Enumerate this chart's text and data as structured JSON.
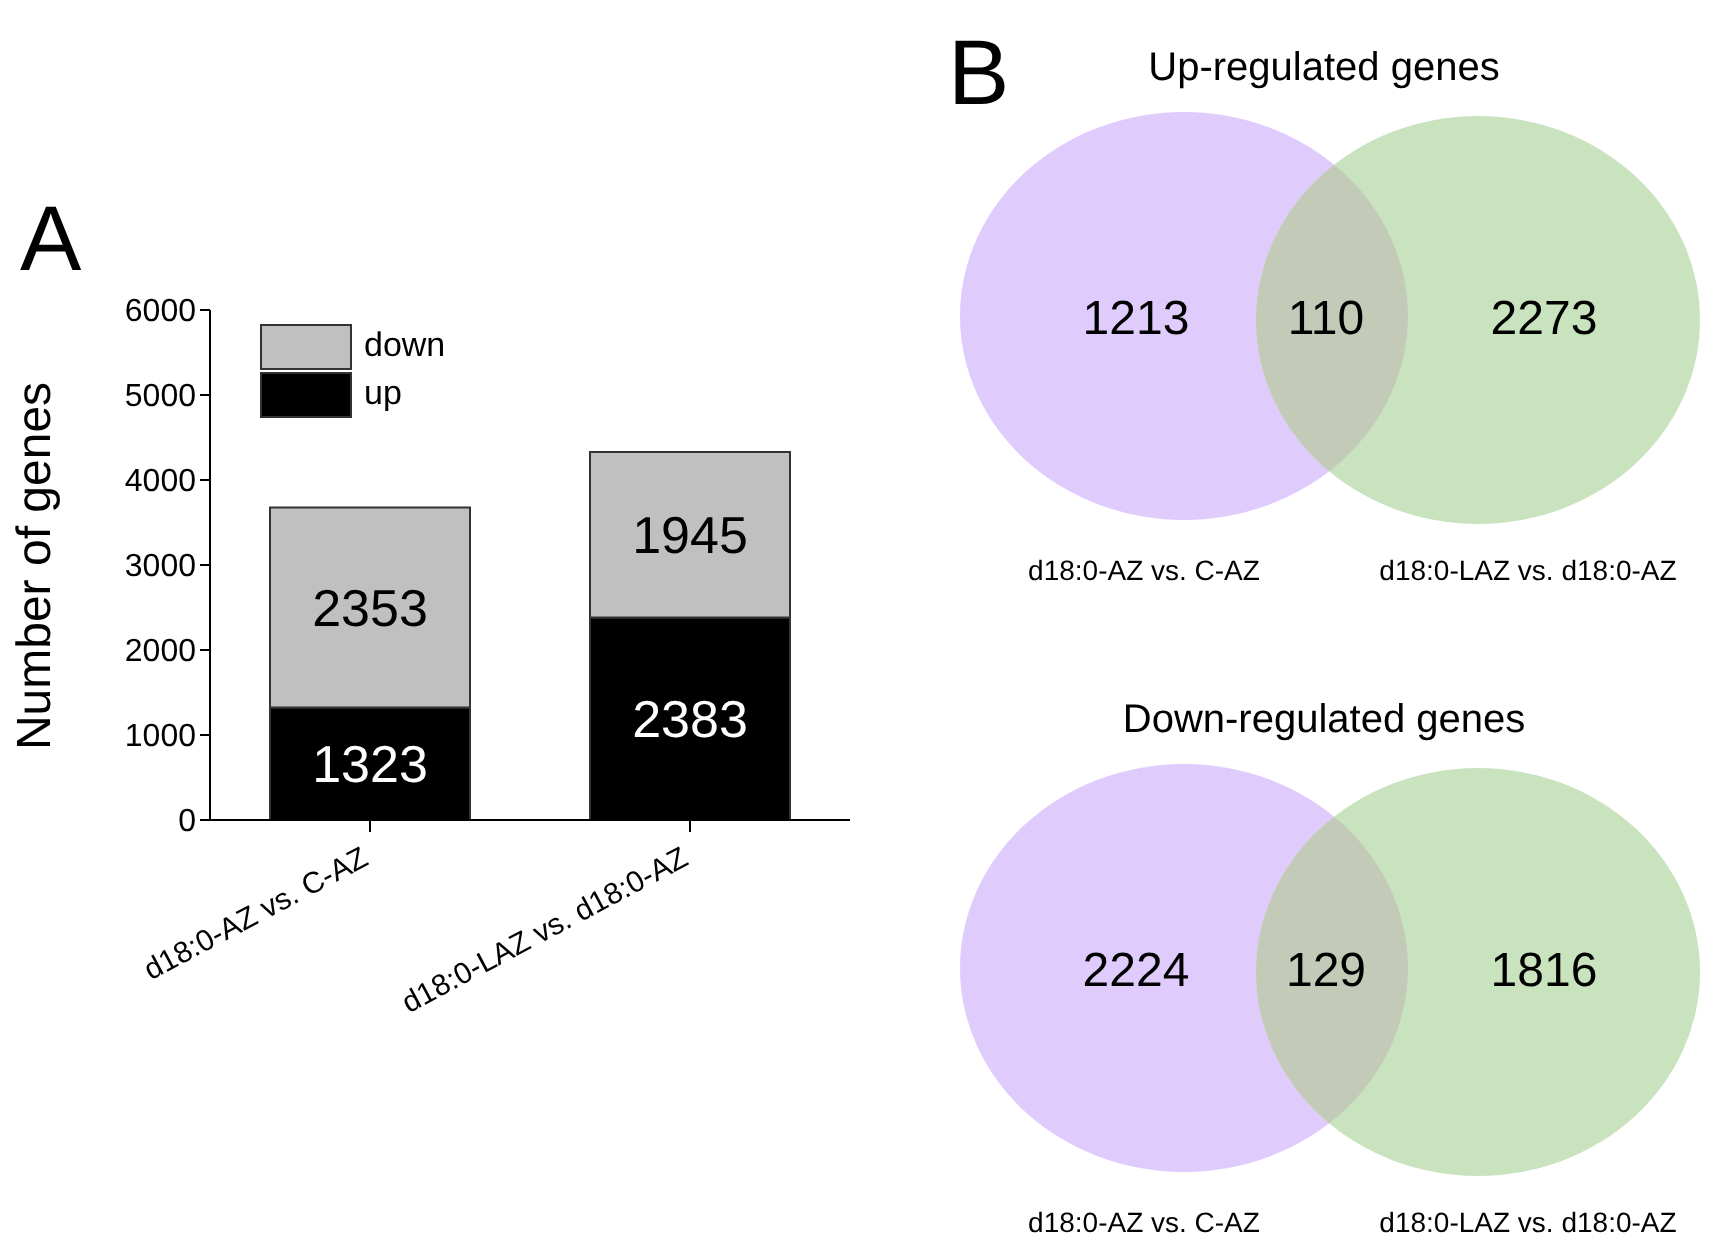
{
  "chart_data": [
    {
      "type": "bar",
      "title": "A",
      "ylabel": "Number of genes",
      "categories": [
        "d18:0-AZ vs. C-AZ",
        "d18:0-LAZ vs. d18:0-AZ"
      ],
      "stacked": true,
      "data_labels": true,
      "legend": "top left",
      "ylim": [
        0,
        6000
      ],
      "yticks": [
        0,
        1000,
        2000,
        3000,
        4000,
        5000,
        6000
      ],
      "series": [
        {
          "name": "up",
          "color": "#000000",
          "values": [
            1323,
            2383
          ]
        },
        {
          "name": "down",
          "color": "#c0c0c0",
          "values": [
            2353,
            1945
          ]
        }
      ]
    },
    {
      "type": "other",
      "title": "Up-regulated genes",
      "annotations": [
        "B",
        "d18:0-AZ vs. C-AZ",
        "d18:0-LAZ vs. d18:0-AZ"
      ],
      "categories": [
        null,
        null,
        null
      ],
      "values": [
        1213,
        110,
        2273
      ],
      "colors": [
        "#e0ccfc",
        "#c3cbb8",
        "#c9e3bf"
      ],
      "data_labels": true
    },
    {
      "type": "other",
      "title": "Down-regulated genes",
      "annotations": [
        "d18:0-AZ vs. C-AZ",
        "d18:0-LAZ vs. d18:0-AZ"
      ],
      "categories": [
        null,
        null,
        null
      ],
      "values": [
        2224,
        129,
        1816
      ],
      "colors": [
        "#e0ccfc",
        "#c3cbb8",
        "#c9e3bf"
      ],
      "data_labels": true
    }
  ]
}
